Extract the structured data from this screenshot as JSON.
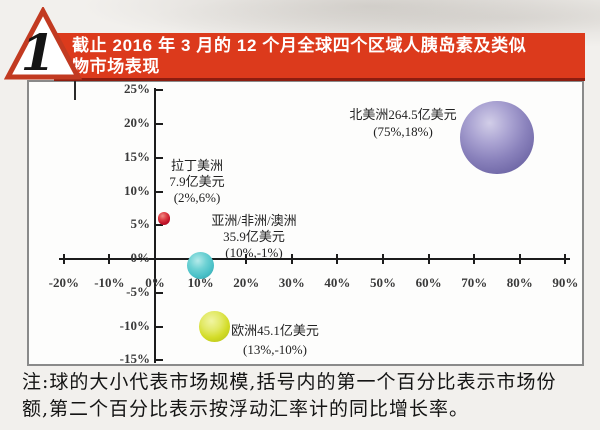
{
  "header": {
    "badge": "1",
    "title_line1": "截止 2016 年 3 月的 12 个月全球四个区域人胰岛素及类似",
    "title_line2": "物市场表现",
    "banner_color": "#dc3a1c",
    "text_color": "#ffffff"
  },
  "chart_data": {
    "type": "scatter",
    "title": "截止2016年3月的12个月全球四个区域人胰岛素及类似物市场表现",
    "x_axis": {
      "unit": "%",
      "range": [
        -20,
        90
      ],
      "ticks": [
        -20,
        -10,
        0,
        10,
        20,
        30,
        40,
        50,
        60,
        70,
        80,
        90
      ]
    },
    "y_axis": {
      "unit": "%",
      "range": [
        -15,
        25
      ],
      "ticks": [
        25,
        20,
        15,
        10,
        5,
        0,
        -5,
        -10,
        -15
      ]
    },
    "bubble_size_meaning": "市场规模(亿美元)",
    "series": [
      {
        "key": "north-america",
        "name": "北美洲",
        "market_size_billion_usd": 264.5,
        "share_pct": 75,
        "growth_pct": 18,
        "x": 75,
        "y": 18,
        "label_lines": [
          "北美洲264.5亿美元",
          "(75%,18%)"
        ],
        "color": "#8a82bc"
      },
      {
        "key": "latin-america",
        "name": "拉丁美洲",
        "market_size_billion_usd": 7.9,
        "share_pct": 2,
        "growth_pct": 6,
        "x": 2,
        "y": 6,
        "label_lines": [
          "拉丁美洲",
          "7.9亿美元",
          "(2%,6%)"
        ],
        "color": "#c01228"
      },
      {
        "key": "asia-africa-oceania",
        "name": "亚洲/非洲/澳洲",
        "market_size_billion_usd": 35.9,
        "share_pct": 10,
        "growth_pct": -1,
        "x": 10,
        "y": -1,
        "label_lines": [
          "亚洲/非洲/澳洲",
          "35.9亿美元",
          "(10%,-1%)"
        ],
        "color": "#49c0c7"
      },
      {
        "key": "europe",
        "name": "欧洲",
        "market_size_billion_usd": 45.1,
        "share_pct": 13,
        "growth_pct": -10,
        "x": 13,
        "y": -10,
        "label_lines": [
          "欧洲45.1亿美元",
          "(13%,-10%)"
        ],
        "color": "#d3dc28"
      }
    ]
  },
  "note": {
    "line1": "注:球的大小代表市场规模,括号内的第一个百分比表示市场份",
    "line2": "额,第二个百分比表示按浮动汇率计的同比增长率。",
    "full": "注:球的大小代表市场规模,括号内的第一个百分比表示市场份额,第二个百分比表示按浮动汇率计的同比增长率。"
  }
}
